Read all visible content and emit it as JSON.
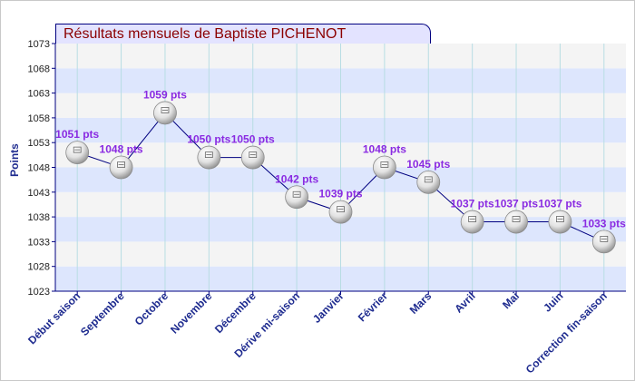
{
  "title": "Résultats mensuels de  Baptiste PICHENOT",
  "chart_data": {
    "type": "line",
    "title": "Résultats mensuels de  Baptiste PICHENOT",
    "xlabel": "",
    "ylabel": "Points",
    "ylim": [
      1023,
      1073
    ],
    "yticks": [
      1023,
      1028,
      1033,
      1038,
      1043,
      1048,
      1053,
      1058,
      1063,
      1068,
      1073
    ],
    "categories": [
      "Début saison",
      "Septembre",
      "Octobre",
      "Novembre",
      "Décembre",
      "Dérive mi-saison",
      "Janvier",
      "Février",
      "Mars",
      "Avril",
      "Mai",
      "Juin",
      "Correction fin-saison"
    ],
    "values": [
      1051,
      1048,
      1059,
      1050,
      1050,
      1042,
      1039,
      1048,
      1045,
      1037,
      1037,
      1037,
      1033
    ],
    "data_labels": [
      "1051 pts",
      "1048 pts",
      "1059 pts",
      "1050 pts",
      "1050 pts",
      "1042 pts",
      "1039 pts",
      "1048 pts",
      "1045 pts",
      "1037 pts",
      "1037 pts",
      "1037 pts",
      "1033 pts"
    ],
    "grid": true,
    "band_colors": [
      "#dde6fd",
      "#f4f4f4"
    ],
    "line_color": "#000080",
    "label_color": "#8a2be2",
    "axis_label_color": "#1e2b8f",
    "marker": "ping-pong-ball-icon"
  }
}
